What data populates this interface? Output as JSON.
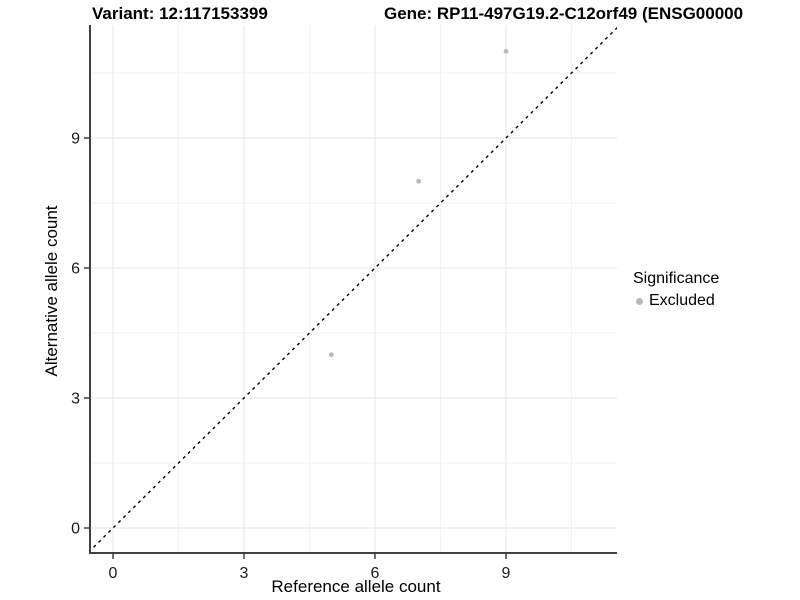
{
  "chart_data": {
    "type": "scatter",
    "title_left": "Variant: 12:117153399",
    "title_right": "Gene: RP11-497G19.2-C12orf49 (ENSG00000",
    "xlabel": "Reference allele count",
    "ylabel": "Alternative allele count",
    "xlim": [
      -0.55,
      11.55
    ],
    "ylim": [
      -0.58,
      11.6
    ],
    "xticks": [
      0,
      3,
      6,
      9
    ],
    "yticks": [
      0,
      3,
      6,
      9
    ],
    "x_minor_ticks": [
      1.5,
      4.5,
      7.5,
      10.5
    ],
    "y_minor_ticks": [
      1.5,
      4.5,
      7.5,
      10.5
    ],
    "grid": "major and minor, light gray, on white panel",
    "reference_line": {
      "equation": "y = x",
      "style": "dashed",
      "color": "#000000"
    },
    "series": [
      {
        "name": "Excluded",
        "marker": "circle",
        "color": "#b9b9b9",
        "points": [
          [
            5,
            4
          ],
          [
            7,
            8
          ],
          [
            9,
            11
          ]
        ]
      }
    ],
    "legend": {
      "title": "Significance",
      "position": "right",
      "entries": [
        {
          "label": "Excluded",
          "color": "#b9b9b9"
        }
      ]
    }
  },
  "colors": {
    "background": "#ffffff",
    "axis_line": "#404040",
    "grid_major": "#e6e6e6",
    "grid_minor": "#f2f2f2",
    "tick_text": "#1a1a1a",
    "title_text": "#000000",
    "point": "#b9b9b9",
    "identity_line": "#000000"
  }
}
